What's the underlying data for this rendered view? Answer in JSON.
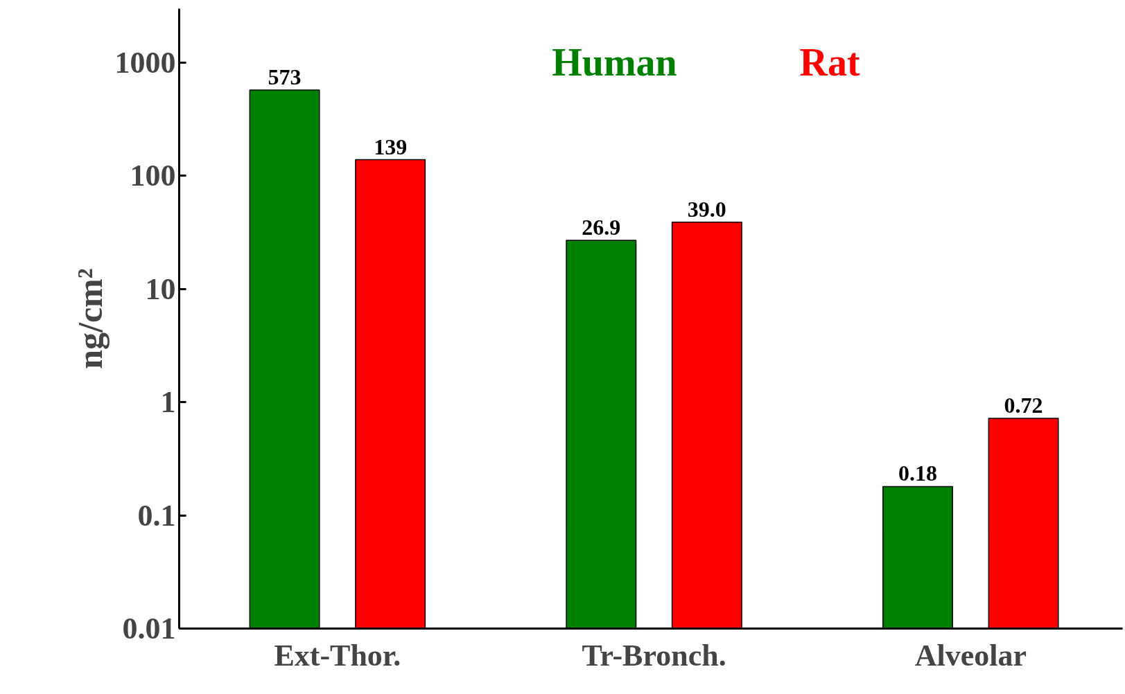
{
  "chart_data": {
    "type": "bar",
    "ylabel": "ng/cm²",
    "categories": [
      "Ext-Thor.",
      "Tr-Bronch.",
      "Alveolar"
    ],
    "series": [
      {
        "name": "Human",
        "color": "#008000",
        "values": [
          573,
          26.9,
          0.18
        ],
        "value_labels": [
          "573",
          "26.9",
          "0.18"
        ]
      },
      {
        "name": "Rat",
        "color": "#ff0000",
        "values": [
          139,
          39.0,
          0.72
        ],
        "value_labels": [
          "139",
          "39.0",
          "0.72"
        ]
      }
    ],
    "log": true,
    "ylim": [
      0.01,
      3000
    ],
    "yticks": [
      0.01,
      0.1,
      1,
      10,
      100,
      1000
    ],
    "grid": false,
    "legend": "top"
  }
}
